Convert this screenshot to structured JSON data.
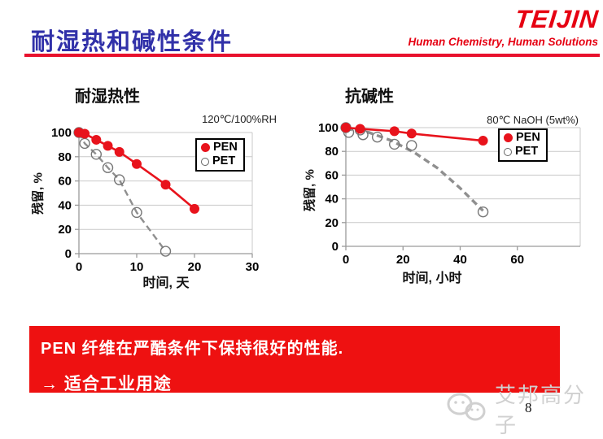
{
  "slide": {
    "title": "耐湿热和碱性条件",
    "page_number": "8"
  },
  "logo": {
    "brand": "TEIJIN",
    "tagline": "Human Chemistry, Human Solutions"
  },
  "banner": {
    "line1": "PEN 纤维在严酷条件下保持很好的性能.",
    "line2": "→ 适合工业用途"
  },
  "watermark": {
    "text": "艾邦高分子",
    "icon": "wechat-icon"
  },
  "colors": {
    "title_blue": "#3131a9",
    "teijin_red": "#e60012",
    "rule_red": "#e8112d",
    "banner_red": "#ee1111",
    "pen_red": "#e8131c",
    "pet_gray": "#8f8f8f",
    "grid_gray": "#c9c9c9",
    "watermark_gray": "#d0d0d0"
  },
  "chart_data": [
    {
      "type": "line",
      "title": "耐湿热性",
      "condition": "120℃/100%RH",
      "xlabel": "时间, 天",
      "ylabel": "残留, %",
      "xlim": [
        0,
        30
      ],
      "ylim": [
        0,
        100
      ],
      "xticks": [
        0,
        10,
        20,
        30
      ],
      "yticks": [
        0,
        20,
        40,
        60,
        80,
        100
      ],
      "grid": true,
      "legend_position": "upper-right-inside",
      "series": [
        {
          "name": "PEN",
          "color": "#e8131c",
          "marker": "filled",
          "line": "solid",
          "width": 2.6,
          "x": [
            0,
            1,
            3,
            5,
            7,
            10,
            15,
            20
          ],
          "y": [
            100,
            99,
            94,
            89,
            84,
            74,
            57,
            37
          ]
        },
        {
          "name": "PET",
          "color": "#8f8f8f",
          "marker": "open",
          "line": "dashed",
          "width": 2.4,
          "x": [
            0,
            1,
            3,
            5,
            7,
            10,
            15
          ],
          "y": [
            100,
            91,
            82,
            71,
            61,
            34,
            2
          ]
        }
      ]
    },
    {
      "type": "line",
      "title": "抗碱性",
      "condition": "80℃ NaOH (5wt%)",
      "xlabel": "时间, 小时",
      "ylabel": "残留, %",
      "xlim": [
        0,
        82
      ],
      "ylim": [
        0,
        100
      ],
      "xticks": [
        0,
        20,
        40,
        60
      ],
      "yticks": [
        0,
        20,
        40,
        60,
        80,
        100
      ],
      "grid": true,
      "legend_position": "upper-right-inside",
      "series": [
        {
          "name": "PEN",
          "color": "#e8131c",
          "marker": "filled",
          "line": "solid",
          "width": 2.6,
          "x": [
            0,
            5,
            17,
            23,
            48
          ],
          "y": [
            100,
            99,
            97,
            95,
            89
          ]
        },
        {
          "name": "PET",
          "color": "#8f8f8f",
          "marker": "open",
          "line": "dashed",
          "width": 3.4,
          "x": [
            0,
            1,
            5,
            6,
            11,
            17,
            23,
            48
          ],
          "y": [
            100,
            96,
            98,
            94,
            92,
            86,
            85,
            29
          ],
          "line_x": [
            0,
            8,
            16,
            24,
            32,
            40,
            48
          ],
          "line_y": [
            99,
            96,
            89,
            79,
            66,
            49,
            30
          ]
        }
      ]
    }
  ]
}
